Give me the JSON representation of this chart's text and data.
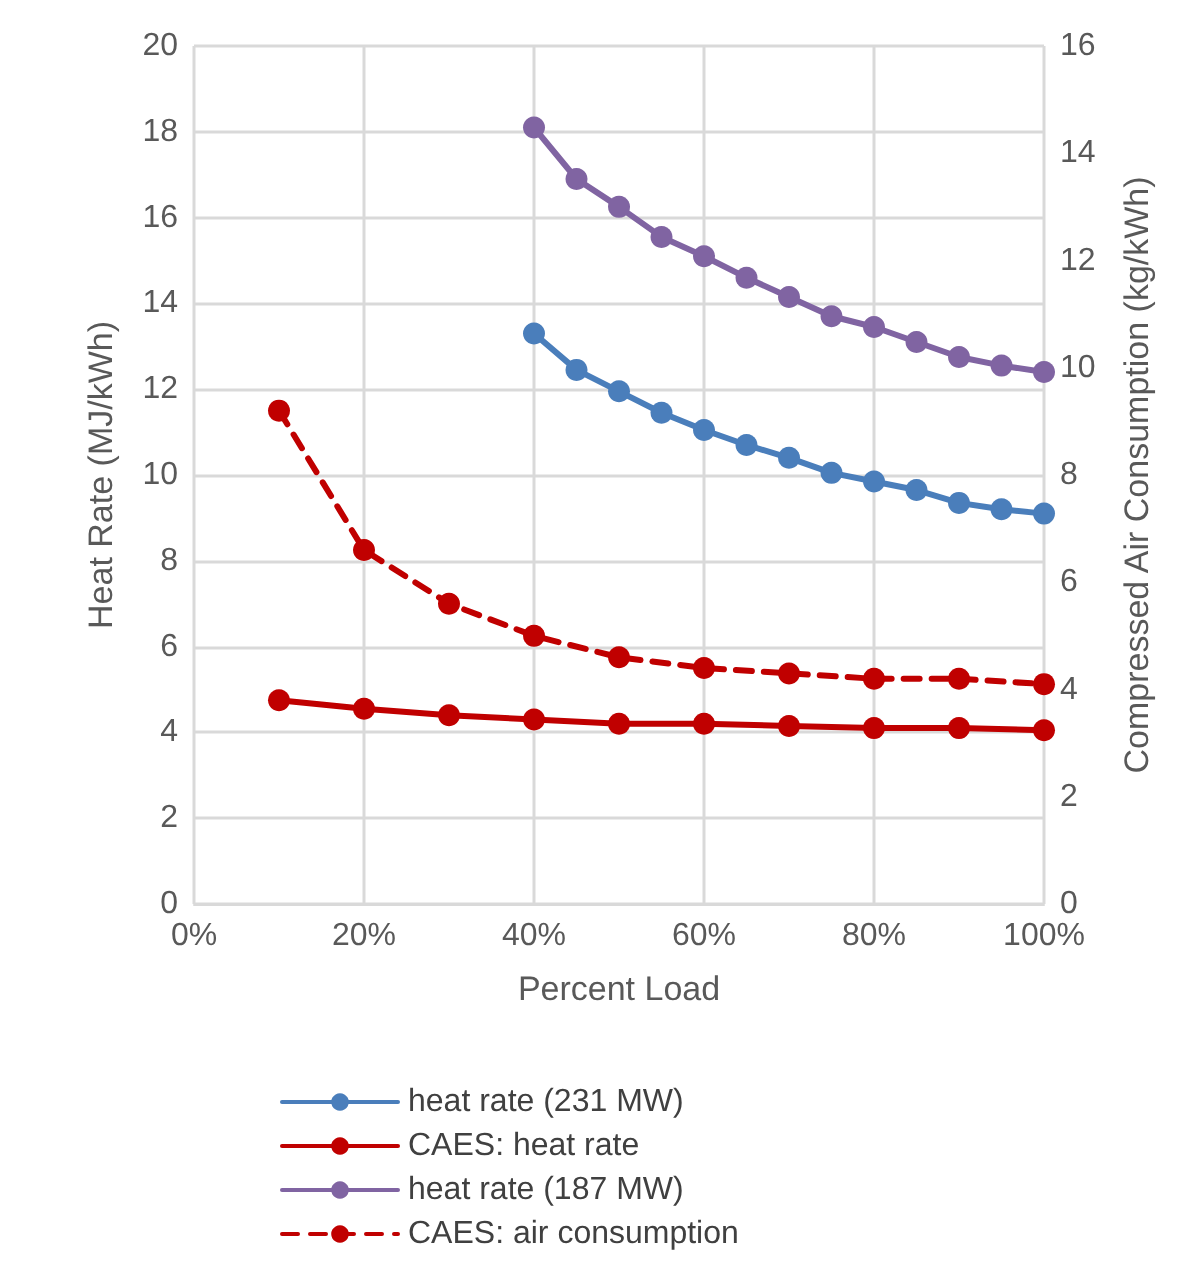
{
  "chart_data": {
    "type": "line",
    "xlabel": "Percent Load",
    "ylabel": "Heat Rate (MJ/kWh)",
    "y2label": "Compressed Air Consumption (kg/kWh)",
    "xlim": [
      0,
      100
    ],
    "xticks": [
      {
        "value": 0,
        "label": "0%"
      },
      {
        "value": 20,
        "label": "20%"
      },
      {
        "value": 40,
        "label": "40%"
      },
      {
        "value": 60,
        "label": "60%"
      },
      {
        "value": 80,
        "label": "80%"
      },
      {
        "value": 100,
        "label": "100%"
      }
    ],
    "ylim": [
      0,
      20
    ],
    "yticks": [
      0,
      2,
      4,
      6,
      8,
      10,
      12,
      14,
      16,
      18,
      20
    ],
    "y2lim": [
      0,
      16
    ],
    "y2ticks": [
      0,
      2,
      4,
      6,
      8,
      10,
      12,
      14,
      16
    ],
    "grid": true,
    "legend": "bottom",
    "marker": "circle",
    "series": [
      {
        "name": "heat rate (231 MW)",
        "color": "#4a7ebb",
        "x": [
          40,
          45,
          50,
          55,
          60,
          65,
          70,
          75,
          80,
          85,
          90,
          95,
          100
        ],
        "values": [
          13.3,
          12.45,
          11.95,
          11.45,
          11.05,
          10.7,
          10.4,
          10.05,
          9.85,
          9.65,
          9.35,
          9.2,
          9.1
        ]
      },
      {
        "name": "CAES: heat rate",
        "color": "#c00000",
        "x": [
          10,
          20,
          30,
          40,
          50,
          60,
          70,
          80,
          90,
          100
        ],
        "values": [
          4.75,
          4.55,
          4.4,
          4.3,
          4.2,
          4.2,
          4.15,
          4.1,
          4.1,
          4.05
        ]
      },
      {
        "name": "heat rate (187 MW)",
        "color": "#8064a2",
        "x": [
          40,
          45,
          50,
          55,
          60,
          65,
          70,
          75,
          80,
          85,
          90,
          95,
          100
        ],
        "values": [
          18.1,
          16.9,
          16.25,
          15.55,
          15.1,
          14.6,
          14.15,
          13.7,
          13.45,
          13.1,
          12.75,
          12.55,
          12.4
        ]
      },
      {
        "name": "CAES: air consumption",
        "color": "#c00000",
        "axis": "y2",
        "line_style": "dashed",
        "x": [
          10,
          20,
          30,
          40,
          50,
          60,
          70,
          80,
          90,
          100
        ],
        "values": [
          9.2,
          6.6,
          5.6,
          5.0,
          4.6,
          4.4,
          4.3,
          4.2,
          4.2,
          4.1
        ]
      }
    ]
  }
}
